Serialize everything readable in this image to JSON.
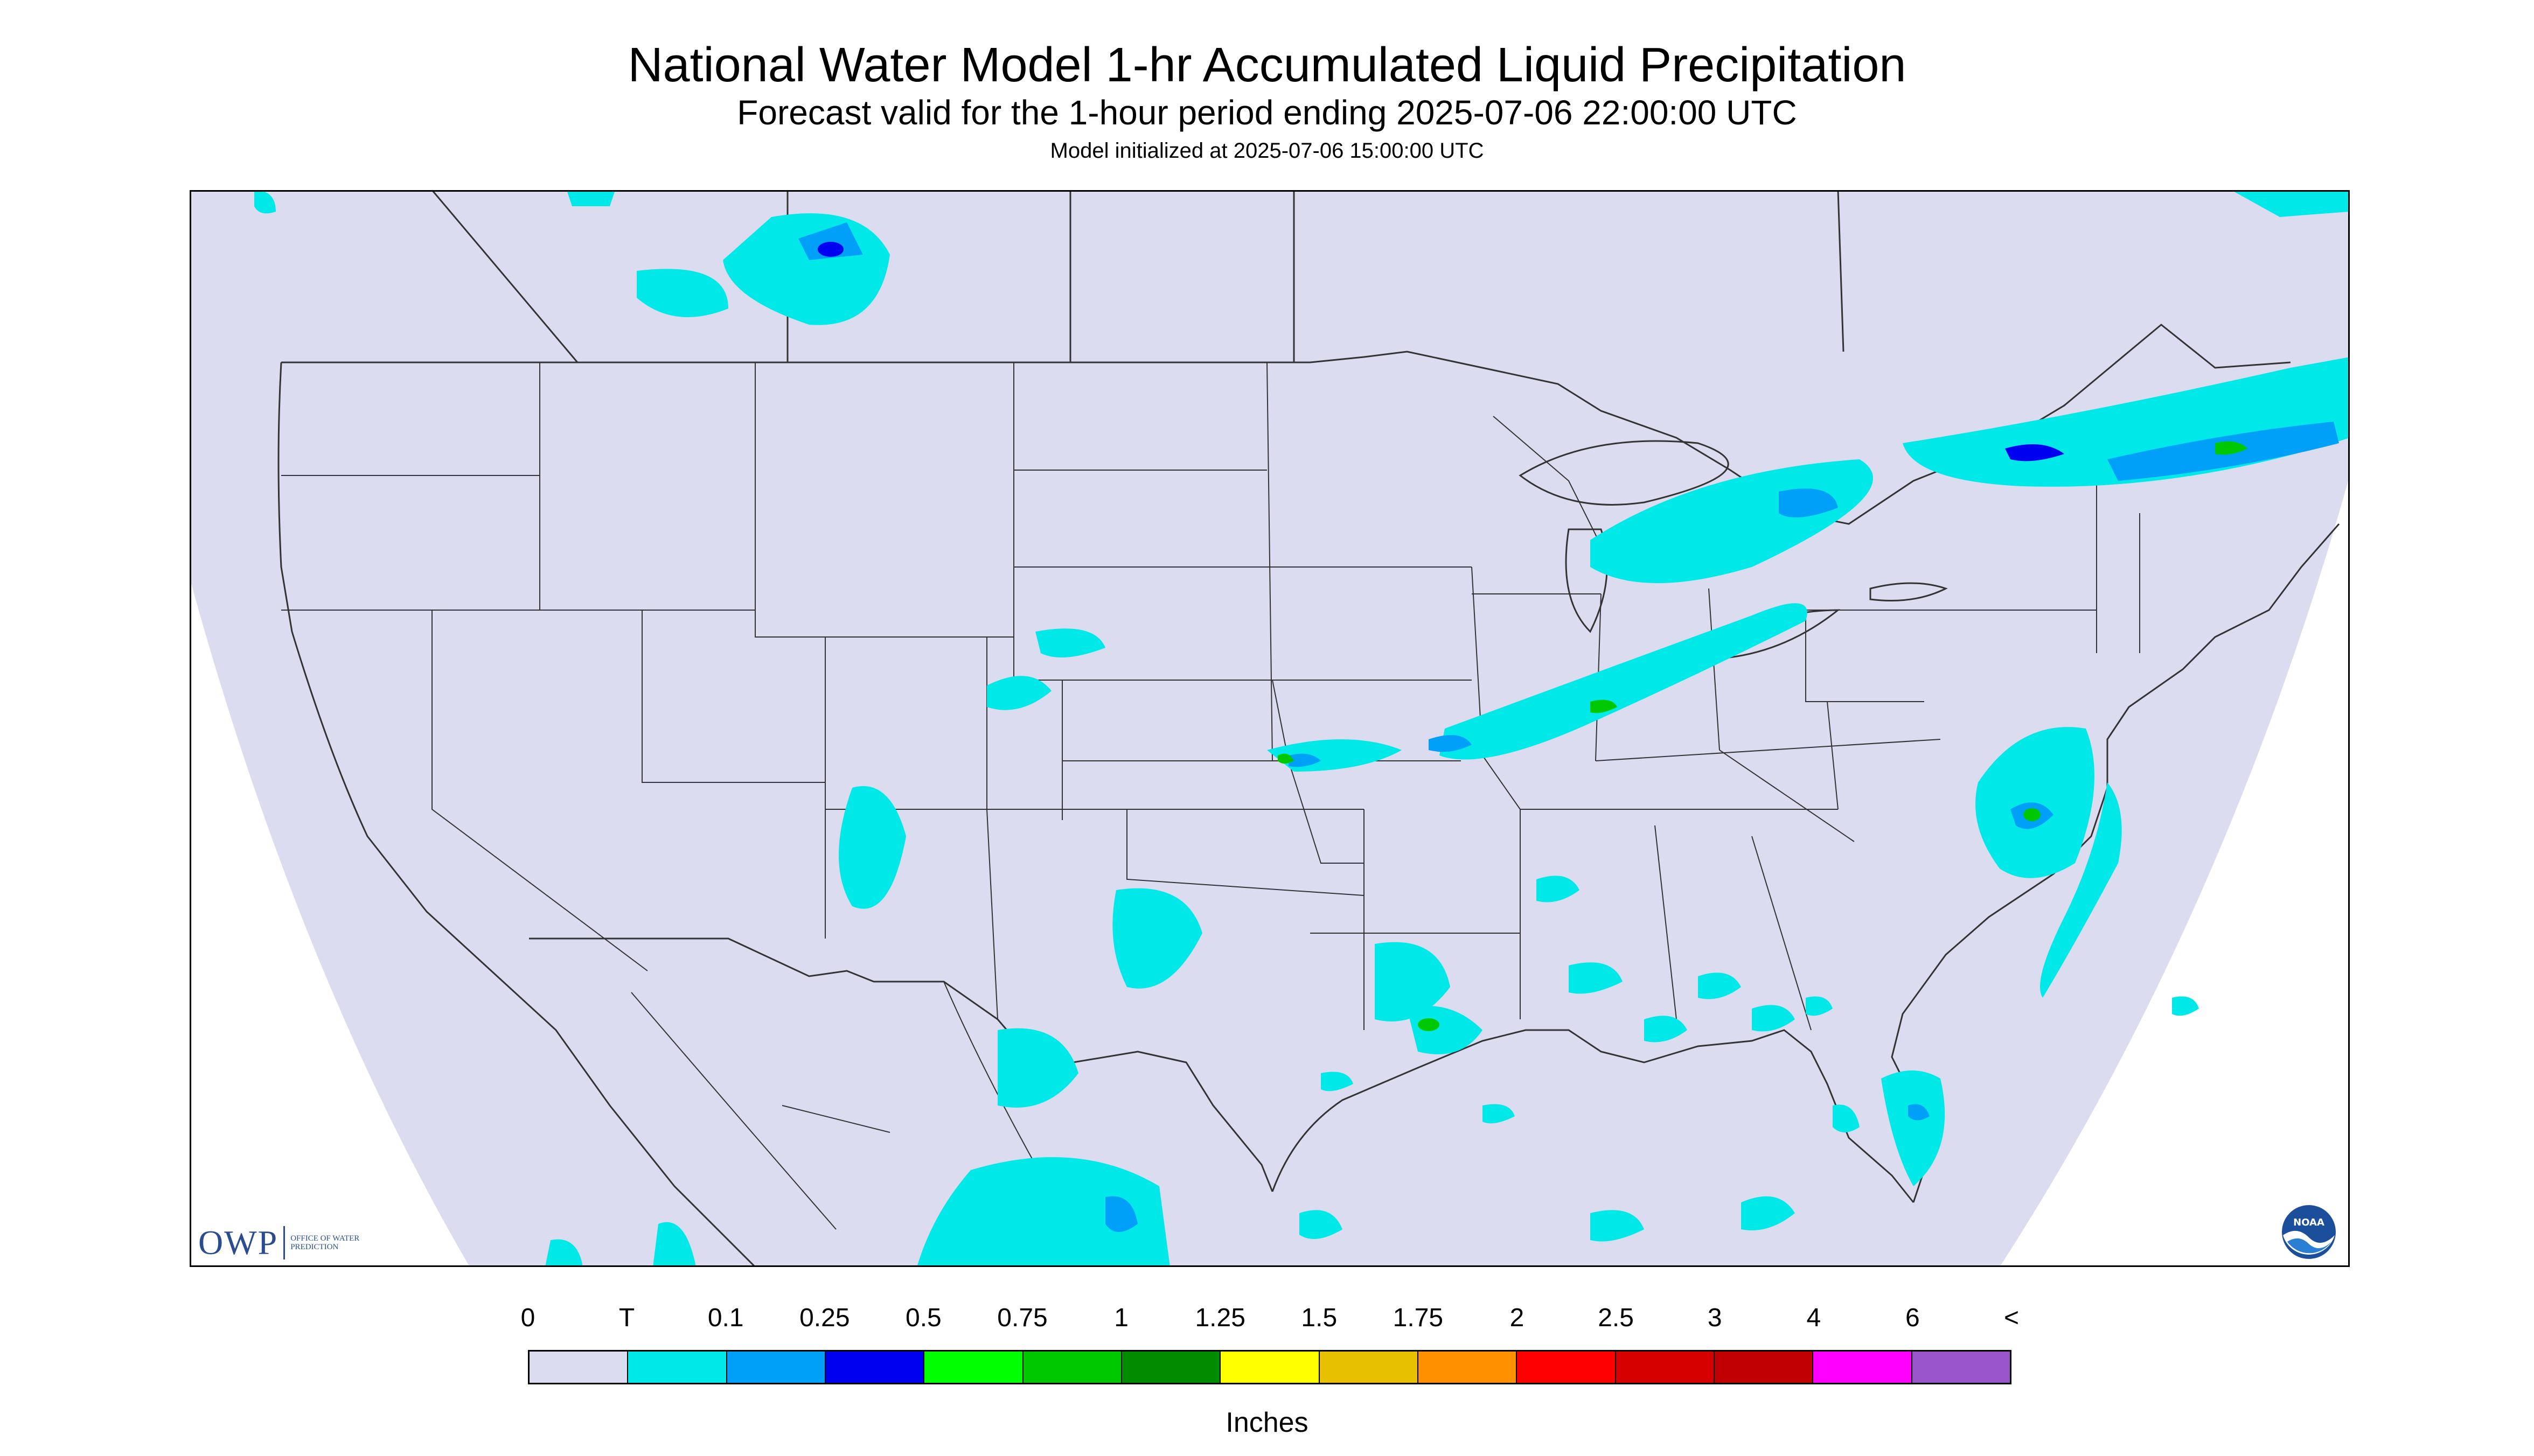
{
  "header": {
    "title": "National Water Model 1-hr Accumulated Liquid Precipitation",
    "subtitle": "Forecast valid for the 1-hour period ending 2025-07-06 22:00:00 UTC",
    "init": "Model initialized at 2025-07-06 15:00:00 UTC"
  },
  "logos": {
    "owp_mark": "OWP",
    "owp_words": "OFFICE OF WATER PREDICTION",
    "noaa_text": "NOAA"
  },
  "legend": {
    "units": "Inches",
    "labels": [
      "0",
      "T",
      "0.1",
      "0.25",
      "0.5",
      "0.75",
      "1",
      "1.25",
      "1.5",
      "1.75",
      "2",
      "2.5",
      "3",
      "4",
      "6",
      "<"
    ],
    "colors": [
      "#dcdcf0",
      "#00e8e8",
      "#00a0f8",
      "#0000f0",
      "#00ff00",
      "#00c800",
      "#008c00",
      "#ffff00",
      "#e7c000",
      "#ff9000",
      "#ff0000",
      "#d60000",
      "#c00000",
      "#ff00ff",
      "#9955c9"
    ]
  },
  "colors": {
    "background": "#dcdcf0",
    "frame": "#000000",
    "boundaries": "#333333"
  }
}
